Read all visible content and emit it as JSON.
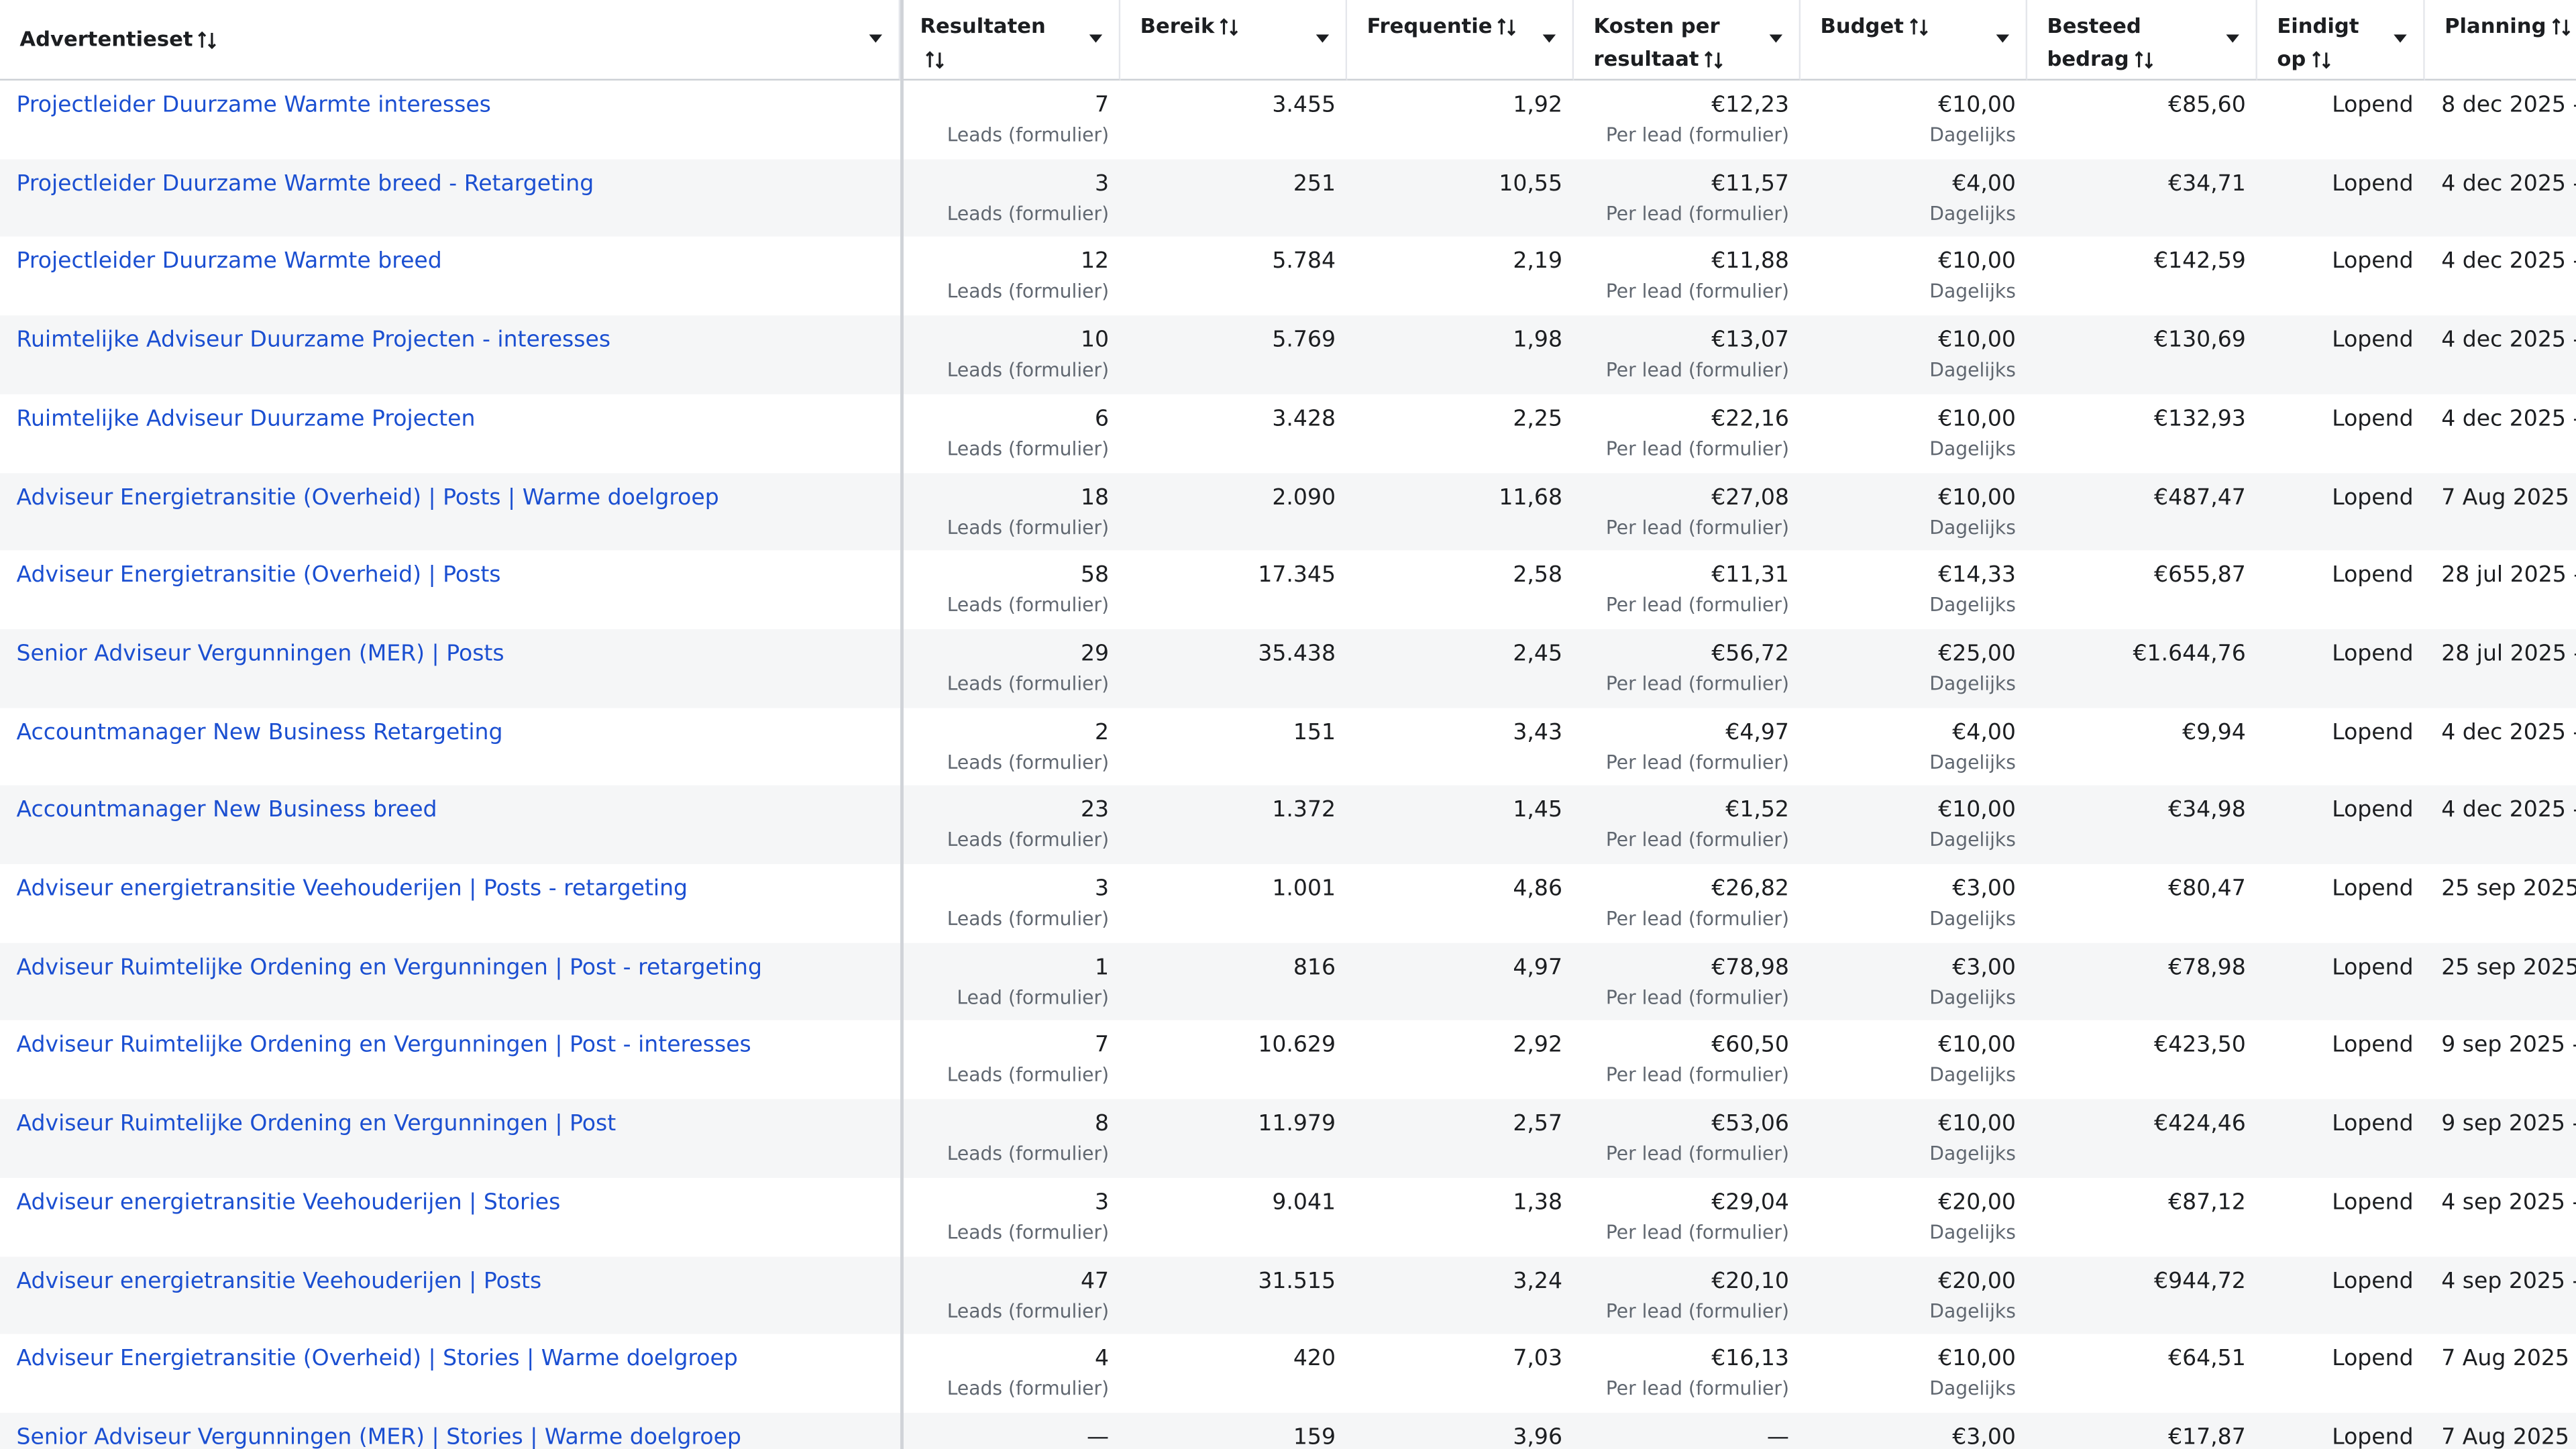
{
  "table": {
    "headers": [
      "Advertentieset",
      "Resultaten",
      "Bereik",
      "Frequentie",
      "Kosten per resultaat",
      "Budget",
      "Besteed bedrag",
      "Eindigt op",
      "Planning"
    ],
    "rows": [
      {
        "name": "Projectleider Duurzame Warmte interesses",
        "results": "7",
        "results_note": "Leads (formulier)",
        "reach": "3.455",
        "frequency": "1,92",
        "cost": "€12,23",
        "cost_note": "Per lead (formulier)",
        "budget": "€10,00",
        "budget_note": "Dagelijks",
        "spent": "€85,60",
        "ends": "Lopend",
        "planning": "8 dec 2025 -"
      },
      {
        "name": "Projectleider Duurzame Warmte breed - Retargeting",
        "results": "3",
        "results_note": "Leads (formulier)",
        "reach": "251",
        "frequency": "10,55",
        "cost": "€11,57",
        "cost_note": "Per lead (formulier)",
        "budget": "€4,00",
        "budget_note": "Dagelijks",
        "spent": "€34,71",
        "ends": "Lopend",
        "planning": "4 dec 2025 -"
      },
      {
        "name": "Projectleider Duurzame Warmte breed",
        "results": "12",
        "results_note": "Leads (formulier)",
        "reach": "5.784",
        "frequency": "2,19",
        "cost": "€11,88",
        "cost_note": "Per lead (formulier)",
        "budget": "€10,00",
        "budget_note": "Dagelijks",
        "spent": "€142,59",
        "ends": "Lopend",
        "planning": "4 dec 2025 -"
      },
      {
        "name": "Ruimtelijke Adviseur Duurzame Projecten - interesses",
        "results": "10",
        "results_note": "Leads (formulier)",
        "reach": "5.769",
        "frequency": "1,98",
        "cost": "€13,07",
        "cost_note": "Per lead (formulier)",
        "budget": "€10,00",
        "budget_note": "Dagelijks",
        "spent": "€130,69",
        "ends": "Lopend",
        "planning": "4 dec 2025 -"
      },
      {
        "name": "Ruimtelijke Adviseur Duurzame Projecten",
        "results": "6",
        "results_note": "Leads (formulier)",
        "reach": "3.428",
        "frequency": "2,25",
        "cost": "€22,16",
        "cost_note": "Per lead (formulier)",
        "budget": "€10,00",
        "budget_note": "Dagelijks",
        "spent": "€132,93",
        "ends": "Lopend",
        "planning": "4 dec 2025 -"
      },
      {
        "name": "Adviseur Energietransitie (Overheid) | Posts | Warme doelgroep",
        "results": "18",
        "results_note": "Leads (formulier)",
        "reach": "2.090",
        "frequency": "11,68",
        "cost": "€27,08",
        "cost_note": "Per lead (formulier)",
        "budget": "€10,00",
        "budget_note": "Dagelijks",
        "spent": "€487,47",
        "ends": "Lopend",
        "planning": "7 Aug 2025 -"
      },
      {
        "name": "Adviseur Energietransitie (Overheid) | Posts",
        "results": "58",
        "results_note": "Leads (formulier)",
        "reach": "17.345",
        "frequency": "2,58",
        "cost": "€11,31",
        "cost_note": "Per lead (formulier)",
        "budget": "€14,33",
        "budget_note": "Dagelijks",
        "spent": "€655,87",
        "ends": "Lopend",
        "planning": "28 jul 2025 -"
      },
      {
        "name": "Senior Adviseur Vergunningen (MER) | Posts",
        "results": "29",
        "results_note": "Leads (formulier)",
        "reach": "35.438",
        "frequency": "2,45",
        "cost": "€56,72",
        "cost_note": "Per lead (formulier)",
        "budget": "€25,00",
        "budget_note": "Dagelijks",
        "spent": "€1.644,76",
        "ends": "Lopend",
        "planning": "28 jul 2025 -"
      },
      {
        "name": "Accountmanager New Business Retargeting",
        "results": "2",
        "results_note": "Leads (formulier)",
        "reach": "151",
        "frequency": "3,43",
        "cost": "€4,97",
        "cost_note": "Per lead (formulier)",
        "budget": "€4,00",
        "budget_note": "Dagelijks",
        "spent": "€9,94",
        "ends": "Lopend",
        "planning": "4 dec 2025 -"
      },
      {
        "name": "Accountmanager New Business breed",
        "results": "23",
        "results_note": "Leads (formulier)",
        "reach": "1.372",
        "frequency": "1,45",
        "cost": "€1,52",
        "cost_note": "Per lead (formulier)",
        "budget": "€10,00",
        "budget_note": "Dagelijks",
        "spent": "€34,98",
        "ends": "Lopend",
        "planning": "4 dec 2025 -"
      },
      {
        "name": "Adviseur energietransitie Veehouderijen | Posts - retargeting",
        "results": "3",
        "results_note": "Leads (formulier)",
        "reach": "1.001",
        "frequency": "4,86",
        "cost": "€26,82",
        "cost_note": "Per lead (formulier)",
        "budget": "€3,00",
        "budget_note": "Dagelijks",
        "spent": "€80,47",
        "ends": "Lopend",
        "planning": "25 sep 2025"
      },
      {
        "name": "Adviseur Ruimtelijke Ordening en Vergunningen | Post - retargeting",
        "results": "1",
        "results_note": "Lead (formulier)",
        "reach": "816",
        "frequency": "4,97",
        "cost": "€78,98",
        "cost_note": "Per lead (formulier)",
        "budget": "€3,00",
        "budget_note": "Dagelijks",
        "spent": "€78,98",
        "ends": "Lopend",
        "planning": "25 sep 2025"
      },
      {
        "name": "Adviseur Ruimtelijke Ordening en Vergunningen | Post - interesses",
        "results": "7",
        "results_note": "Leads (formulier)",
        "reach": "10.629",
        "frequency": "2,92",
        "cost": "€60,50",
        "cost_note": "Per lead (formulier)",
        "budget": "€10,00",
        "budget_note": "Dagelijks",
        "spent": "€423,50",
        "ends": "Lopend",
        "planning": "9 sep 2025 -"
      },
      {
        "name": "Adviseur Ruimtelijke Ordening en Vergunningen | Post",
        "results": "8",
        "results_note": "Leads (formulier)",
        "reach": "11.979",
        "frequency": "2,57",
        "cost": "€53,06",
        "cost_note": "Per lead (formulier)",
        "budget": "€10,00",
        "budget_note": "Dagelijks",
        "spent": "€424,46",
        "ends": "Lopend",
        "planning": "9 sep 2025 -"
      },
      {
        "name": "Adviseur energietransitie Veehouderijen | Stories",
        "results": "3",
        "results_note": "Leads (formulier)",
        "reach": "9.041",
        "frequency": "1,38",
        "cost": "€29,04",
        "cost_note": "Per lead (formulier)",
        "budget": "€20,00",
        "budget_note": "Dagelijks",
        "spent": "€87,12",
        "ends": "Lopend",
        "planning": "4 sep 2025 -"
      },
      {
        "name": "Adviseur energietransitie Veehouderijen | Posts",
        "results": "47",
        "results_note": "Leads (formulier)",
        "reach": "31.515",
        "frequency": "3,24",
        "cost": "€20,10",
        "cost_note": "Per lead (formulier)",
        "budget": "€20,00",
        "budget_note": "Dagelijks",
        "spent": "€944,72",
        "ends": "Lopend",
        "planning": "4 sep 2025 -"
      },
      {
        "name": "Adviseur Energietransitie (Overheid) | Stories | Warme doelgroep",
        "results": "4",
        "results_note": "Leads (formulier)",
        "reach": "420",
        "frequency": "7,03",
        "cost": "€16,13",
        "cost_note": "Per lead (formulier)",
        "budget": "€10,00",
        "budget_note": "Dagelijks",
        "spent": "€64,51",
        "ends": "Lopend",
        "planning": "7 Aug 2025 -"
      },
      {
        "name": "Senior Adviseur Vergunningen (MER) | Stories | Warme doelgroep",
        "results": "—",
        "reach": "159",
        "frequency": "3,96",
        "cost": "—",
        "budget": "€3,00",
        "spent": "€17,87",
        "ends": "Lopend",
        "planning": "7 Aug 2025 -"
      }
    ]
  }
}
